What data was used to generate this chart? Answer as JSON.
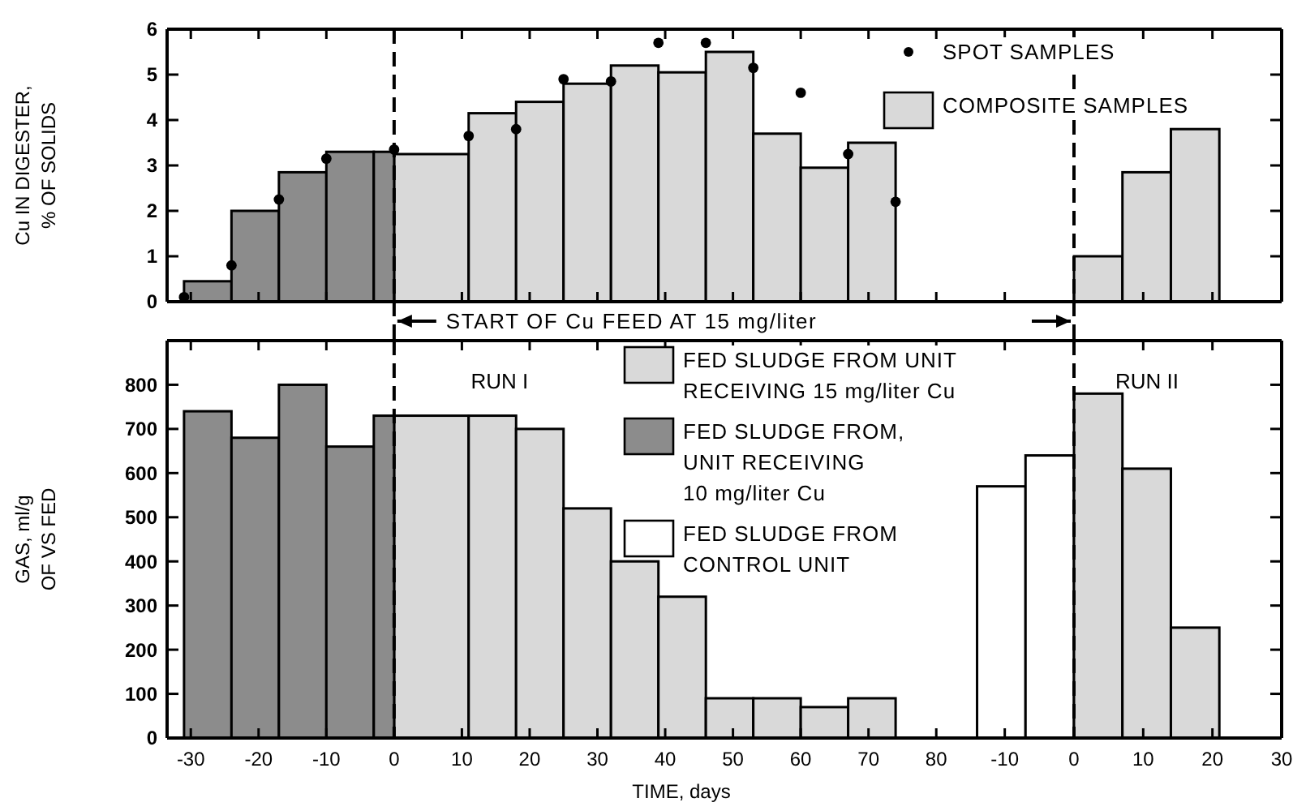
{
  "chart_data": [
    {
      "type": "histogram",
      "ylabel": "Cu IN DIGESTER,\n% OF SOLIDS",
      "xlim": [
        -33.5,
        85
      ],
      "xticks": [
        -30,
        -20,
        -10,
        0,
        10,
        20,
        30,
        40,
        50,
        60,
        70,
        80
      ],
      "ylim": [
        0,
        6
      ],
      "yticks": [
        0,
        1,
        2,
        3,
        4,
        5,
        6
      ],
      "tick_labels": "y",
      "legend": "top right",
      "marker": "circle",
      "bins": [
        -31,
        -24,
        -17,
        -10,
        -3,
        0,
        11,
        18,
        25,
        32,
        39,
        46,
        53,
        60,
        67,
        74
      ],
      "series": [
        {
          "name": "SPOT SAMPLES",
          "type": "scatter",
          "color": "#000000",
          "x": [
            -31,
            -24,
            -17,
            -10,
            0,
            11,
            18,
            25,
            32,
            39,
            46,
            53,
            60,
            67,
            74
          ],
          "values": [
            0.1,
            0.8,
            2.25,
            3.15,
            3.35,
            3.65,
            3.8,
            4.9,
            4.85,
            5.7,
            5.7,
            5.15,
            4.6,
            3.25,
            2.2
          ]
        },
        {
          "name": "COMPOSITE SAMPLES",
          "color": "#d9d9d9",
          "values": [
            null,
            null,
            null,
            null,
            null,
            3.25,
            4.15,
            4.4,
            4.8,
            5.2,
            5.05,
            5.5,
            3.7,
            2.95,
            3.5
          ]
        },
        {
          "color": "#8c8c8c",
          "values": [
            0.45,
            2.0,
            2.85,
            3.3,
            3.3,
            null,
            null,
            null,
            null,
            null,
            null,
            null,
            null,
            null,
            null
          ]
        }
      ],
      "ref_lines": [
        {
          "axis": "x",
          "value": 0,
          "color": "#000000",
          "line_style": "dashed"
        }
      ],
      "annotations": [
        "START OF Cu FEED AT 15 mg/liter"
      ]
    },
    {
      "type": "histogram",
      "xlim": [
        -15,
        30
      ],
      "xticks": [
        -10,
        0,
        10,
        20,
        30
      ],
      "ylim": [
        0,
        6
      ],
      "yticks": [
        0,
        1,
        2,
        3,
        4,
        5,
        6
      ],
      "tick_labels": false,
      "bins": [
        0,
        7,
        14,
        21
      ],
      "series": [
        {
          "color": "#d9d9d9",
          "values": [
            1.0,
            2.85,
            3.8
          ]
        }
      ],
      "ref_lines": [
        {
          "axis": "x",
          "value": 0,
          "color": "#000000",
          "line_style": "dashed"
        }
      ]
    },
    {
      "type": "histogram",
      "ylabel": "GAS, ml/g\nOF VS FED",
      "xlabel": "TIME, days",
      "xlim": [
        -33.5,
        85
      ],
      "xticks": [
        -30,
        -20,
        -10,
        0,
        10,
        20,
        30,
        40,
        50,
        60,
        70,
        80
      ],
      "ylim": [
        0,
        900
      ],
      "yticks": [
        0,
        100,
        200,
        300,
        400,
        500,
        600,
        700,
        800
      ],
      "legend": "top right",
      "bins": [
        -31,
        -24,
        -17,
        -10,
        -3,
        0,
        11,
        18,
        25,
        32,
        39,
        46,
        53,
        60,
        67,
        74
      ],
      "series": [
        {
          "name": "FED SLUDGE FROM UNIT\nRECEIVING 15 mg/liter Cu",
          "color": "#d9d9d9",
          "values": [
            null,
            null,
            null,
            null,
            null,
            730,
            730,
            700,
            520,
            400,
            320,
            90,
            90,
            70,
            90
          ]
        },
        {
          "name": "FED SLUDGE FROM,\nUNIT RECEIVING\n10 mg/liter Cu",
          "color": "#8c8c8c",
          "values": [
            740,
            680,
            800,
            660,
            730,
            null,
            null,
            null,
            null,
            null,
            null,
            null,
            null,
            null,
            null
          ]
        }
      ],
      "ref_lines": [
        {
          "axis": "x",
          "value": 0,
          "color": "#000000",
          "line_style": "dashed"
        }
      ],
      "annotations": [
        "RUN I"
      ]
    },
    {
      "type": "histogram",
      "xlim": [
        -15,
        30
      ],
      "xticks": [
        -10,
        0,
        10,
        20,
        30
      ],
      "ylim": [
        0,
        900
      ],
      "yticks": [
        0,
        100,
        200,
        300,
        400,
        500,
        600,
        700,
        800
      ],
      "tick_labels": "x",
      "bins": [
        -14,
        -7,
        0,
        7,
        14,
        21
      ],
      "series": [
        {
          "name": "FED SLUDGE FROM\nCONTROL UNIT",
          "color": "#ffffff",
          "values": [
            570,
            640,
            null,
            null,
            null
          ]
        },
        {
          "color": "#d9d9d9",
          "values": [
            null,
            null,
            780,
            610,
            250
          ]
        }
      ],
      "ref_lines": [
        {
          "axis": "x",
          "value": 0,
          "color": "#000000",
          "line_style": "dashed"
        }
      ],
      "annotations": [
        "RUN II"
      ]
    }
  ]
}
